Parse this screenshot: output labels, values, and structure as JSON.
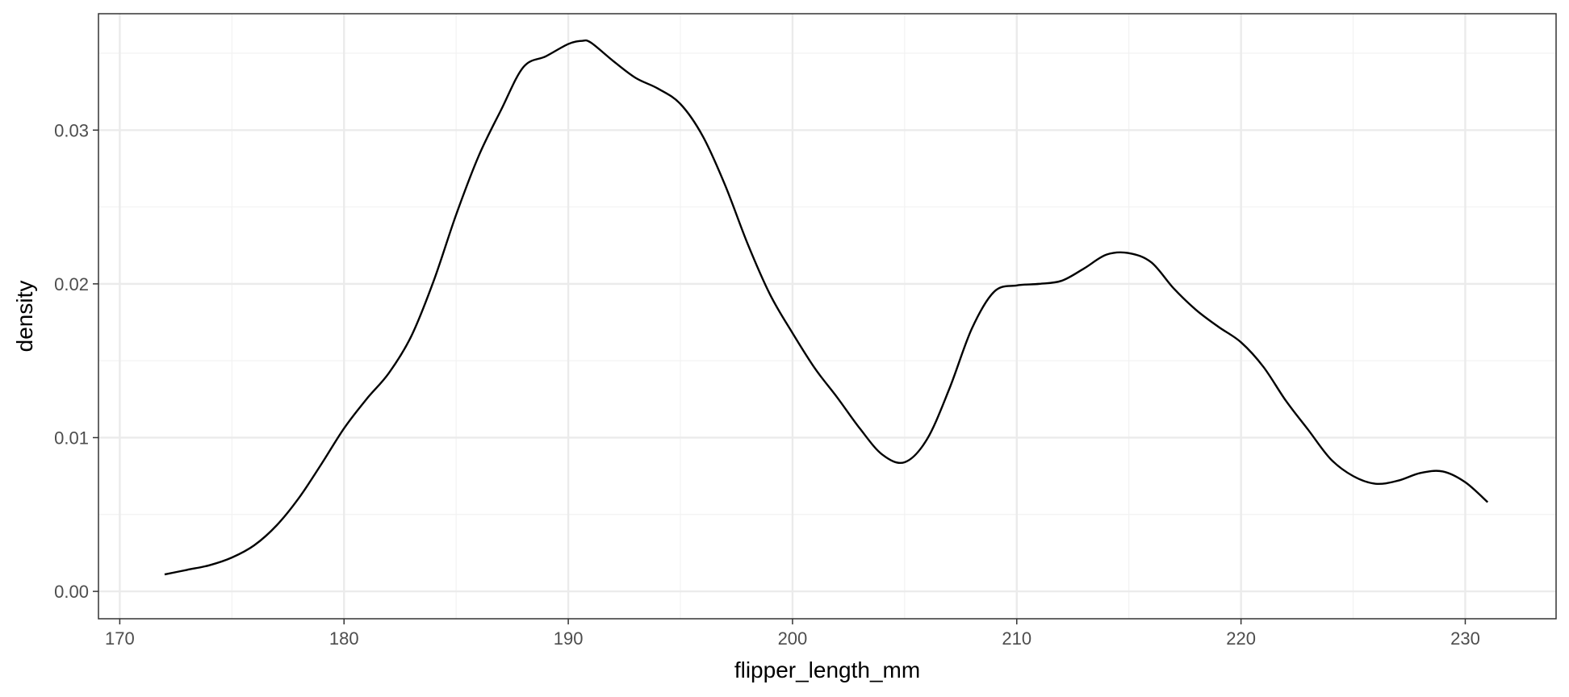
{
  "chart_data": {
    "type": "line",
    "title": "",
    "xlabel": "flipper_length_mm",
    "ylabel": "density",
    "xlim": [
      169.05,
      234.05
    ],
    "ylim": [
      -0.00178,
      0.03757
    ],
    "x_ticks": [
      170,
      180,
      190,
      200,
      210,
      220,
      230
    ],
    "x_tick_labels": [
      "170",
      "180",
      "190",
      "200",
      "210",
      "220",
      "230"
    ],
    "x_minor_ticks": [
      175,
      185,
      195,
      205,
      215,
      225
    ],
    "y_ticks": [
      0.0,
      0.01,
      0.02,
      0.03
    ],
    "y_tick_labels": [
      "0.00",
      "0.01",
      "0.02",
      "0.03"
    ],
    "y_minor_ticks": [
      0.005,
      0.015,
      0.025,
      0.035
    ],
    "grid": true,
    "colors": {
      "line": "#000000",
      "panel_border": "#333333",
      "grid_major": "#ebebeb",
      "grid_minor": "#f2f2f2",
      "tick_text": "#4d4d4d"
    },
    "series": [
      {
        "x": [
          172,
          173,
          174,
          175,
          176,
          177,
          178,
          179,
          180,
          181,
          182,
          183,
          184,
          185,
          186,
          187,
          188,
          189,
          190,
          190.6,
          191,
          192,
          193,
          194,
          195,
          196,
          197,
          198,
          199,
          200,
          201,
          202,
          203,
          204,
          205,
          206,
          207,
          208,
          209,
          210,
          211,
          212,
          213,
          214,
          215,
          216,
          217,
          218,
          219,
          220,
          221,
          222,
          223,
          224,
          225,
          226,
          227,
          228,
          229,
          230,
          231
        ],
        "y": [
          0.0011,
          0.0014,
          0.0017,
          0.0022,
          0.003,
          0.0043,
          0.0061,
          0.0083,
          0.0106,
          0.0125,
          0.0142,
          0.0166,
          0.0202,
          0.0245,
          0.0283,
          0.0313,
          0.0341,
          0.0348,
          0.0356,
          0.0358,
          0.0357,
          0.0345,
          0.0334,
          0.0327,
          0.0317,
          0.0296,
          0.0264,
          0.0226,
          0.0193,
          0.0168,
          0.0145,
          0.0126,
          0.0106,
          0.0089,
          0.0084,
          0.0099,
          0.0132,
          0.0171,
          0.0195,
          0.0199,
          0.02,
          0.0202,
          0.021,
          0.0219,
          0.022,
          0.0214,
          0.0197,
          0.0183,
          0.0172,
          0.0162,
          0.0146,
          0.0124,
          0.0105,
          0.0086,
          0.0075,
          0.007,
          0.0072,
          0.0077,
          0.0078,
          0.0071,
          0.0058
        ]
      }
    ]
  }
}
